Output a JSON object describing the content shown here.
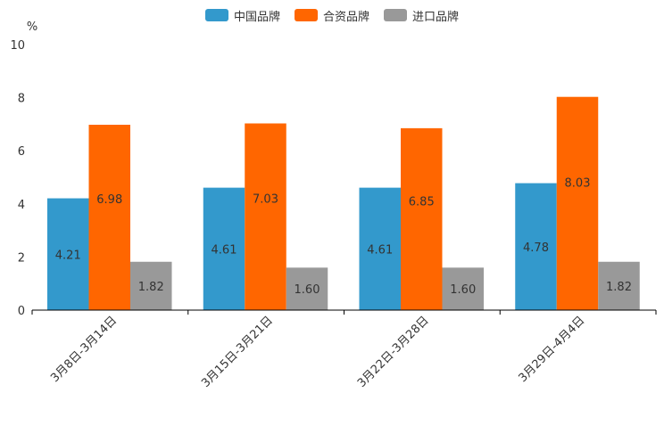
{
  "chart_data": {
    "type": "bar",
    "title": "",
    "unit": "%",
    "xlabel": "",
    "ylabel": "%",
    "ylim": [
      0,
      10
    ],
    "yticks": [
      0,
      2,
      4,
      6,
      8,
      10
    ],
    "categories": [
      "3月8日-3月14日",
      "3月15日-3月21日",
      "3月22日-3月28日",
      "3月29日-4月4日"
    ],
    "series": [
      {
        "name": "中国品牌",
        "color": "#3399cc",
        "values": [
          4.21,
          4.61,
          4.61,
          4.78
        ],
        "labels": [
          "4.21",
          "4.61",
          "4.61",
          "4.78"
        ]
      },
      {
        "name": "合资品牌",
        "color": "#ff6600",
        "values": [
          6.98,
          7.03,
          6.85,
          8.03
        ],
        "labels": [
          "6.98",
          "7.03",
          "6.85",
          "8.03"
        ]
      },
      {
        "name": "进口品牌",
        "color": "#999999",
        "values": [
          1.82,
          1.6,
          1.6,
          1.82
        ],
        "labels": [
          "1.82",
          "1.60",
          "1.60",
          "1.82"
        ]
      }
    ],
    "legend_position": "top-center",
    "grid": false
  }
}
